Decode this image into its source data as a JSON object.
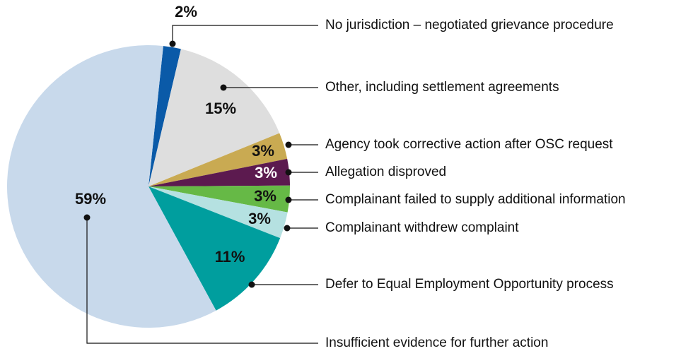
{
  "chart_data": {
    "type": "pie",
    "categories": [
      "No jurisdiction – negotiated grievance procedure",
      "Other, including settlement agreements",
      "Agency took corrective action after OSC request",
      "Allegation disproved",
      "Complainant failed to supply additional information",
      "Complainant withdrew complaint",
      "Defer to Equal Employment Opportunity process",
      "Insufficient evidence for further action"
    ],
    "values": [
      2,
      15,
      3,
      3,
      3,
      3,
      11,
      59
    ],
    "value_labels": [
      "2%",
      "15%",
      "3%",
      "3%",
      "3%",
      "3%",
      "11%",
      "59%"
    ],
    "colors": [
      "#0a5aa8",
      "#dedede",
      "#c9aa52",
      "#5c1a4f",
      "#66b946",
      "#b5e1e1",
      "#009e9e",
      "#c8d9eb"
    ]
  }
}
